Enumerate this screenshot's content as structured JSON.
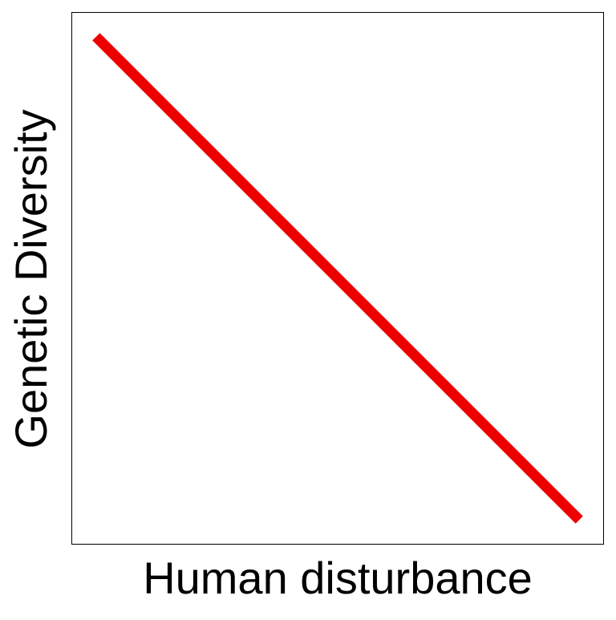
{
  "chart_data": {
    "type": "line",
    "title": "",
    "xlabel": "Human disturbance",
    "ylabel": "Genetic Diversity",
    "xlim": [
      0,
      1
    ],
    "ylim": [
      0,
      1
    ],
    "grid": false,
    "legend": "none",
    "series": [
      {
        "color": "#ee0000",
        "x": [
          0.045,
          0.955
        ],
        "y": [
          0.955,
          0.045
        ]
      }
    ]
  }
}
